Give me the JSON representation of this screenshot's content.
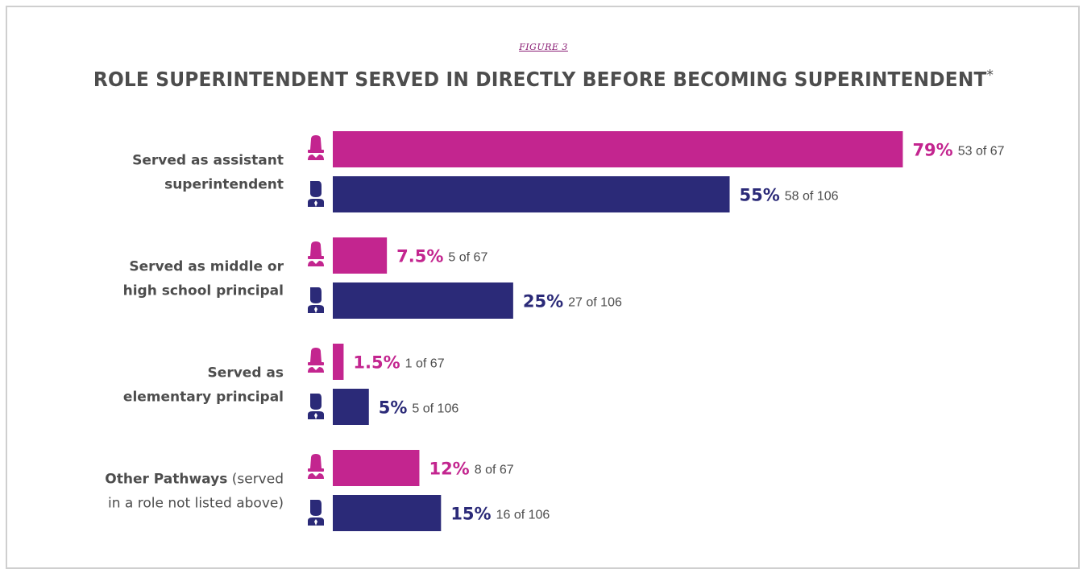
{
  "header": {
    "figure_label": "FIGURE 3",
    "title": "ROLE SUPERINTENDENT SERVED IN DIRECTLY BEFORE BECOMING SUPERINTENDENT",
    "title_mark": "*"
  },
  "colors": {
    "women": "#c3258f",
    "men": "#2b2a78",
    "text": "#4d4d4d",
    "border": "#cfcfcf"
  },
  "icons": {
    "women": "woman-icon",
    "men": "man-icon"
  },
  "chart_data": {
    "type": "bar",
    "orientation": "horizontal",
    "title": "ROLE SUPERINTENDENT SERVED IN DIRECTLY BEFORE BECOMING SUPERINTENDENT*",
    "xlim": [
      0,
      100
    ],
    "categories": [
      {
        "label_lines": [
          {
            "bold": "Served as assistant"
          },
          {
            "bold": "superintendent"
          }
        ]
      },
      {
        "label_lines": [
          {
            "bold": "Served as middle or"
          },
          {
            "bold": "high school principal"
          }
        ]
      },
      {
        "label_lines": [
          {
            "bold": "Served as"
          },
          {
            "bold": "elementary principal"
          }
        ]
      },
      {
        "label_lines": [
          {
            "bold": "Other Pathways",
            "normal": " (served"
          },
          {
            "normal": "in a role not listed above)"
          }
        ]
      }
    ],
    "series": [
      {
        "icon": "woman-icon",
        "values": [
          79,
          7.5,
          1.5,
          12
        ],
        "labels": [
          "79%",
          "7.5%",
          "1.5%",
          "12%"
        ],
        "counts": [
          "53 of 67",
          "5 of 67",
          "1 of 67",
          "8 of 67"
        ]
      },
      {
        "icon": "man-icon",
        "values": [
          55,
          25,
          5,
          15
        ],
        "labels": [
          "55%",
          "25%",
          "5%",
          "15%"
        ],
        "counts": [
          "58 of 106",
          "27 of 106",
          "5 of 106",
          "16 of 106"
        ]
      }
    ]
  }
}
